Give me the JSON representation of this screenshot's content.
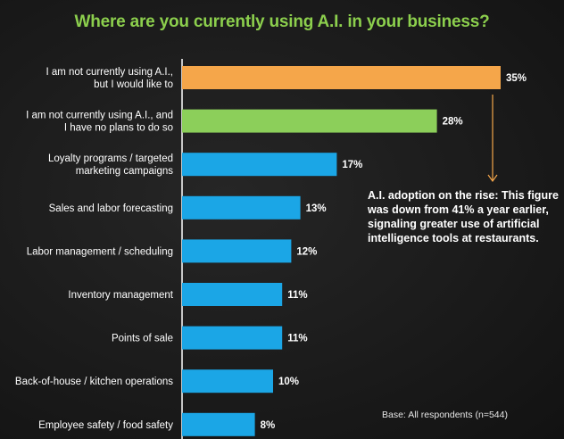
{
  "chart_data": {
    "type": "bar",
    "orientation": "horizontal",
    "title": "Where are you currently using A.I. in your business?",
    "categories": [
      [
        "I am not currently using A.I.,",
        "but I would like to"
      ],
      [
        "I am not currently using A.I., and",
        "I have no plans to do so"
      ],
      [
        "Loyalty programs / targeted",
        "marketing campaigns"
      ],
      [
        "Sales and labor forecasting"
      ],
      [
        "Labor management / scheduling"
      ],
      [
        "Inventory management"
      ],
      [
        "Points of sale"
      ],
      [
        "Back-of-house / kitchen operations"
      ],
      [
        "Employee safety / food safety"
      ]
    ],
    "values": [
      35,
      28,
      17,
      13,
      12,
      11,
      11,
      10,
      8
    ],
    "value_labels": [
      "35%",
      "28%",
      "17%",
      "13%",
      "12%",
      "11%",
      "11%",
      "10%",
      "8%"
    ],
    "bar_colors": [
      "#f5a64a",
      "#8ccf5a",
      "#1ba6e6",
      "#1ba6e6",
      "#1ba6e6",
      "#1ba6e6",
      "#1ba6e6",
      "#1ba6e6",
      "#1ba6e6"
    ],
    "xlim": [
      0,
      35
    ],
    "grid": false,
    "legend": "none"
  },
  "annotation": {
    "text": "A.I. adoption on the rise: This figure was down from 41% a year earlier, signaling greater use of artificial intelligence tools at restaurants.",
    "arrow_color": "#f5a64a"
  },
  "base_note": "Base: All respondents (n=544)",
  "colors": {
    "title": "#8ccf4d",
    "text": "#ffffff",
    "axis_line": "#ffffff"
  }
}
